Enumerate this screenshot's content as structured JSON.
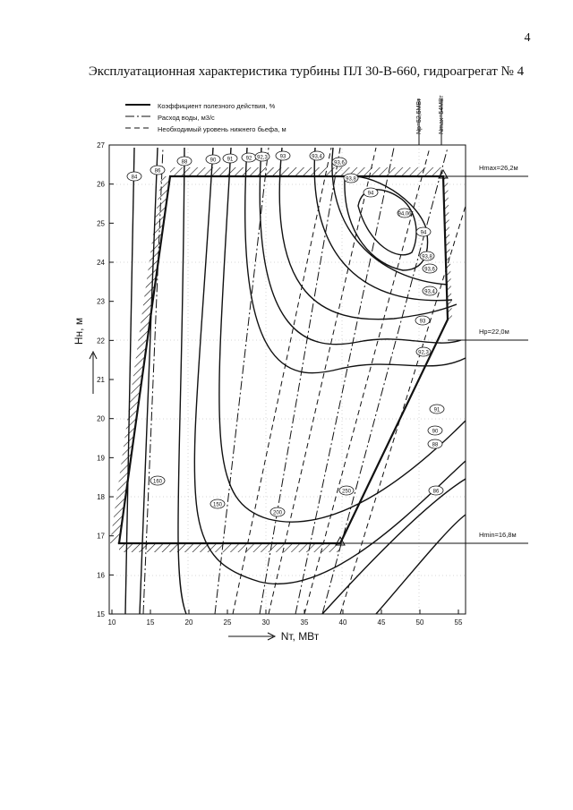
{
  "page_number": "4",
  "title": "Эксплуатационная характеристика турбины ПЛ 30-В-660, гидроагрегат № 4",
  "figure": {
    "legend": [
      "Коэффициент полезного действия, %",
      "Расход воды, м3/с",
      "Необходимый уровень нижнего бьефа, м"
    ],
    "y_axis_label": "Hн, м",
    "x_axis_label": "Nт, МВт",
    "y_ticks": [
      "27",
      "26",
      "25",
      "24",
      "23",
      "22",
      "21",
      "20",
      "19",
      "18",
      "17",
      "16",
      "15"
    ],
    "x_ticks": [
      "10",
      "15",
      "20",
      "25",
      "30",
      "35",
      "40",
      "45",
      "50",
      "55"
    ],
    "head_limits": [
      "Hmax=26,2м",
      "Hp=22,0м",
      "Hmin=16,8м"
    ],
    "power_limits": [
      "Np=52,5МВт",
      "Nmax=54МВт"
    ],
    "contour_labels": [
      "84",
      "86",
      "88",
      "90",
      "91",
      "92",
      "92,3",
      "93",
      "93,4",
      "93,6",
      "93,8",
      "94",
      "94,06",
      "94",
      "93,8",
      "93,6",
      "93,4",
      "93",
      "92,3",
      "91",
      "90",
      "88",
      "86",
      "160",
      "150",
      "200",
      "250"
    ]
  }
}
